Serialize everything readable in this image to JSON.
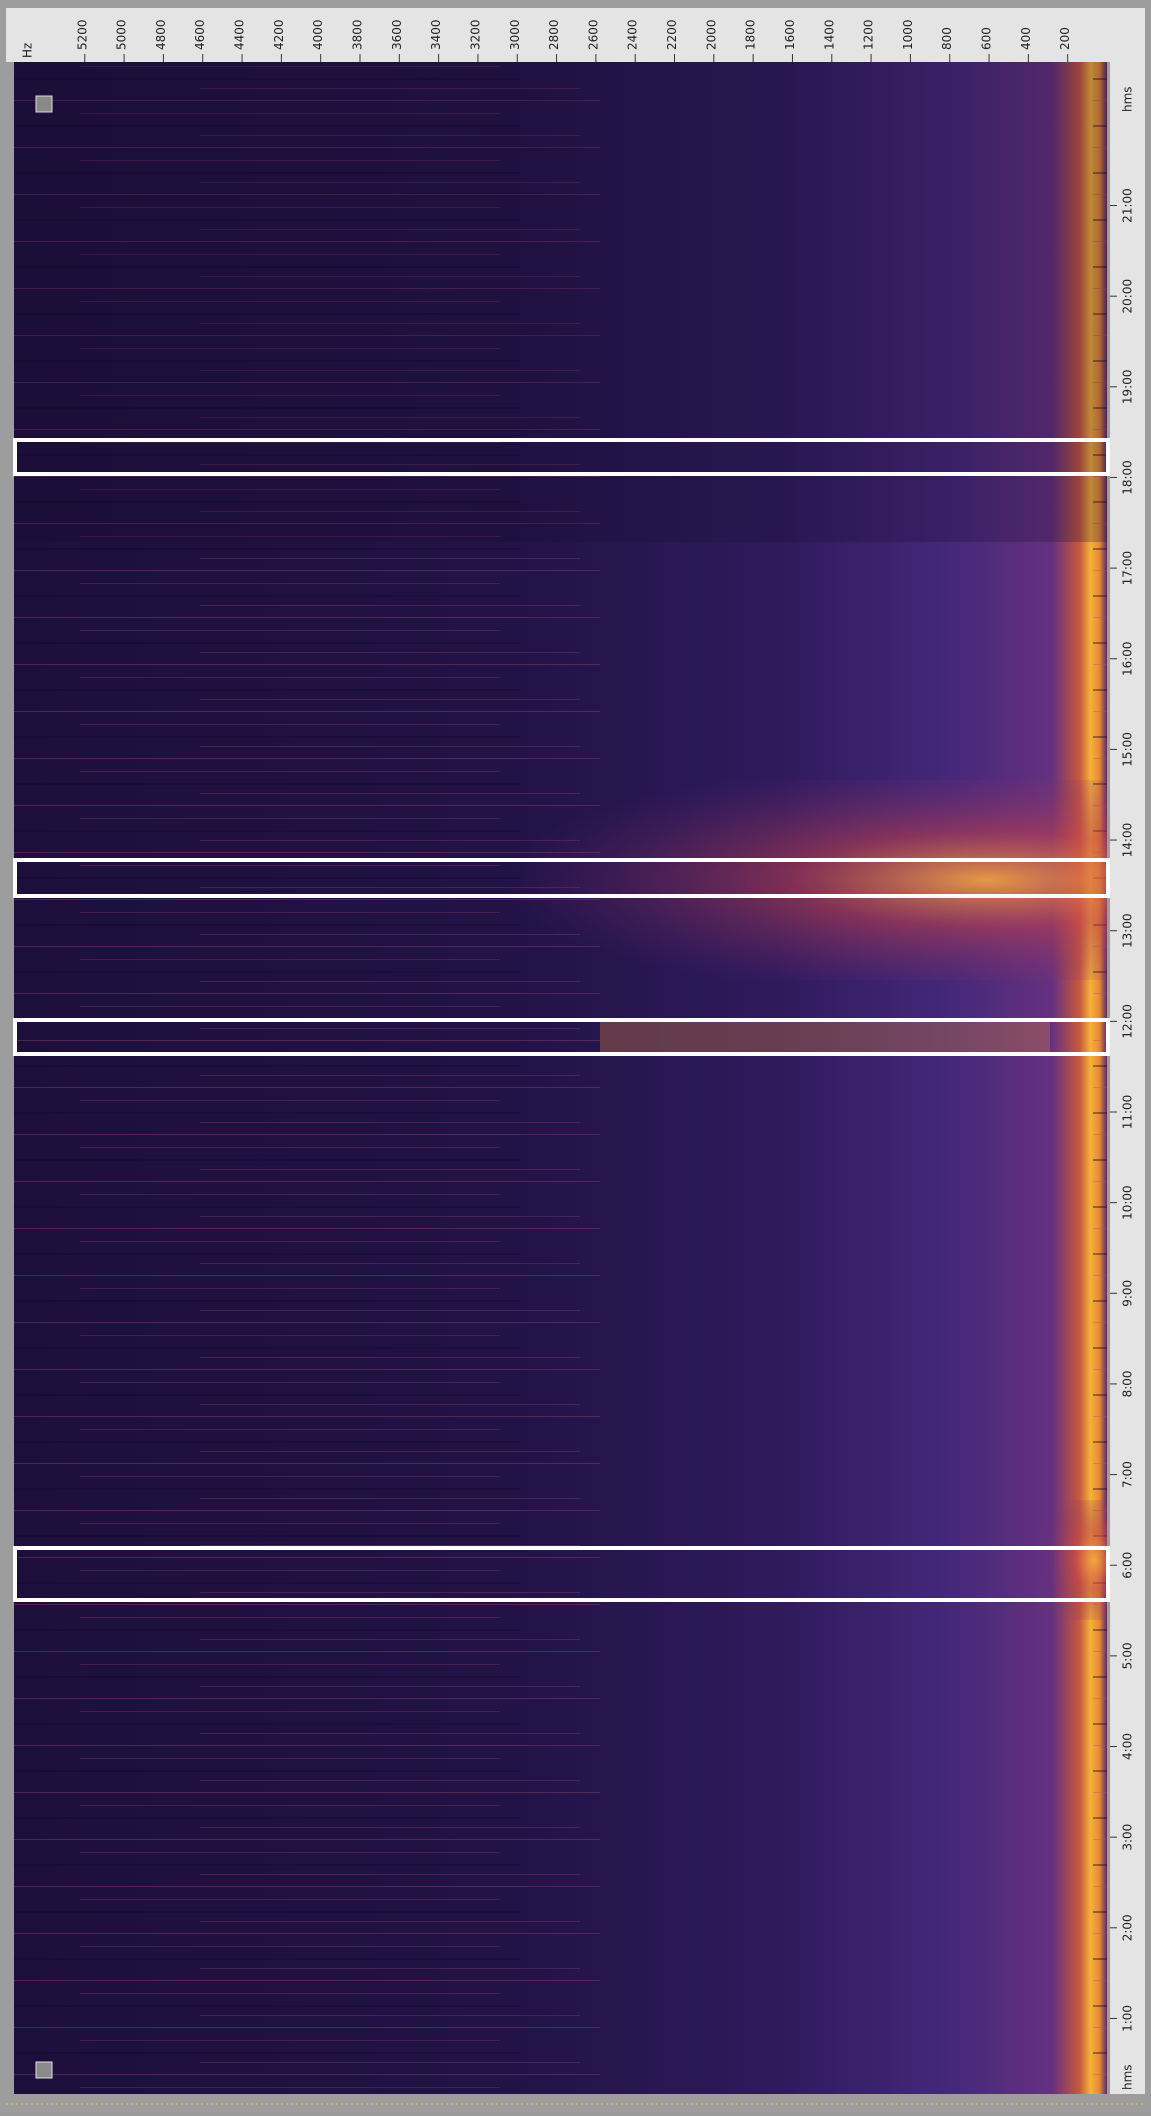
{
  "chart_data": {
    "type": "spectrogram",
    "x_label": "Hz",
    "y_label": "hms",
    "xlim": [
      5560,
      0
    ],
    "xticks": [
      5200,
      5000,
      4800,
      4600,
      4400,
      4200,
      4000,
      3800,
      3600,
      3400,
      3200,
      3000,
      2800,
      2600,
      2400,
      2200,
      2000,
      1800,
      1600,
      1400,
      1200,
      1000,
      800,
      600,
      400,
      200
    ],
    "ylim": [
      10,
      1355
    ],
    "yticks": [
      {
        "value": 60,
        "label": "1:00"
      },
      {
        "value": 120,
        "label": "2:00"
      },
      {
        "value": 180,
        "label": "3:00"
      },
      {
        "value": 240,
        "label": "4:00"
      },
      {
        "value": 300,
        "label": "5:00"
      },
      {
        "value": 360,
        "label": "6:00"
      },
      {
        "value": 420,
        "label": "7:00"
      },
      {
        "value": 480,
        "label": "8:00"
      },
      {
        "value": 540,
        "label": "9:00"
      },
      {
        "value": 600,
        "label": "10:00"
      },
      {
        "value": 660,
        "label": "11:00"
      },
      {
        "value": 720,
        "label": "12:00"
      },
      {
        "value": 780,
        "label": "13:00"
      },
      {
        "value": 840,
        "label": "14:00"
      },
      {
        "value": 900,
        "label": "15:00"
      },
      {
        "value": 960,
        "label": "16:00"
      },
      {
        "value": 1020,
        "label": "17:00"
      },
      {
        "value": 1080,
        "label": "18:00"
      },
      {
        "value": 1140,
        "label": "19:00"
      },
      {
        "value": 1200,
        "label": "20:00"
      },
      {
        "value": 1260,
        "label": "21:00"
      }
    ]
  }
}
